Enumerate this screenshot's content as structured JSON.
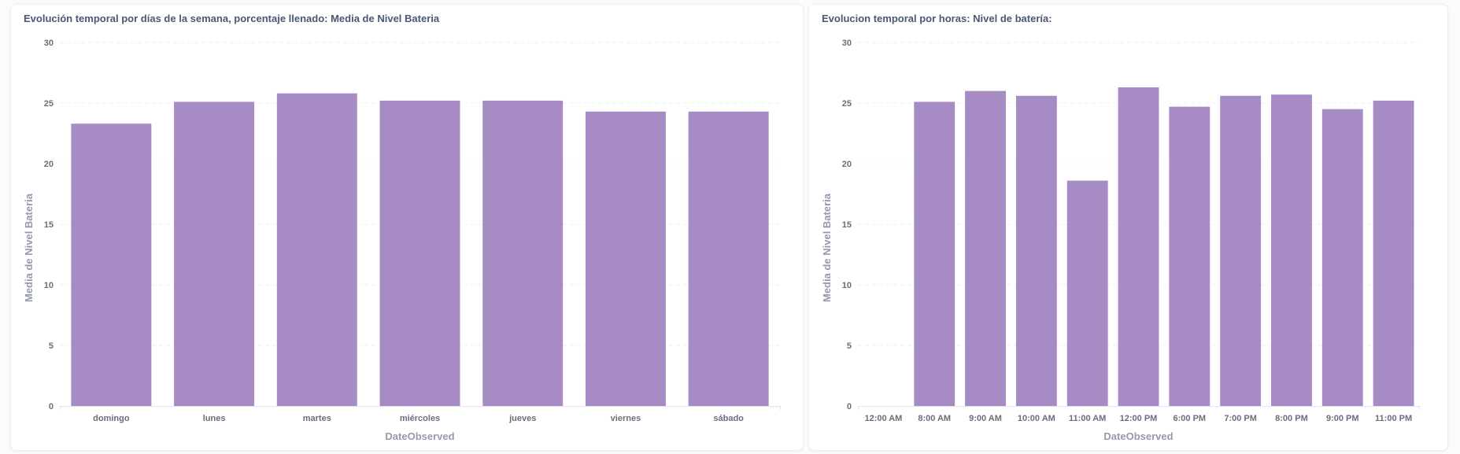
{
  "colors": {
    "bar": "#a78bc4"
  },
  "chart_data": [
    {
      "type": "bar",
      "title": "Evolución temporal por días de la semana, porcentaje llenado: Media de Nivel Bateria",
      "xlabel": "DateObserved",
      "ylabel": "Media de Nivel Bateria",
      "ylim": [
        0,
        30
      ],
      "yticks": [
        0,
        5,
        10,
        15,
        20,
        25,
        30
      ],
      "grid": true,
      "categories": [
        "domingo",
        "lunes",
        "martes",
        "miércoles",
        "jueves",
        "viernes",
        "sábado"
      ],
      "values": [
        23.3,
        25.1,
        25.8,
        25.2,
        25.2,
        24.3,
        24.3
      ]
    },
    {
      "type": "bar",
      "title": "Evolucion temporal por horas: Nivel de batería:",
      "xlabel": "DateObserved",
      "ylabel": "Media de Nivel Bateria",
      "ylim": [
        0,
        30
      ],
      "yticks": [
        0,
        5,
        10,
        15,
        20,
        25,
        30
      ],
      "grid": true,
      "categories": [
        "12:00 AM",
        "8:00 AM",
        "9:00 AM",
        "10:00 AM",
        "11:00 AM",
        "12:00 PM",
        "6:00 PM",
        "7:00 PM",
        "8:00 PM",
        "9:00 PM",
        "11:00 PM"
      ],
      "values": [
        0,
        25.1,
        26.0,
        25.6,
        18.6,
        26.3,
        24.7,
        25.6,
        25.7,
        24.5,
        25.2
      ]
    }
  ]
}
